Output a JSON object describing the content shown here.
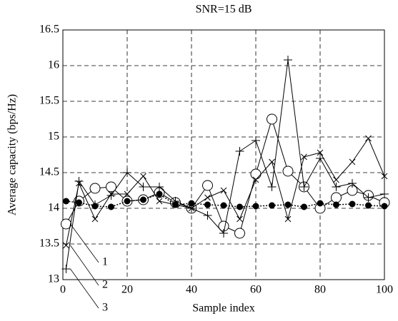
{
  "chart_data": {
    "type": "line",
    "title": "SNR=15 dB",
    "x_label": "Sample index",
    "y_label": "Average capacity (bps/Hz)",
    "x": [
      1,
      5,
      10,
      15,
      20,
      25,
      30,
      35,
      40,
      45,
      50,
      55,
      60,
      65,
      70,
      75,
      80,
      85,
      90,
      95,
      100
    ],
    "series": [
      {
        "name": "1",
        "color": "#000000",
        "marker": "circle",
        "values": [
          13.78,
          14.1,
          14.28,
          14.3,
          14.1,
          14.12,
          14.22,
          14.08,
          14.0,
          14.32,
          13.75,
          13.65,
          14.48,
          15.25,
          14.52,
          14.3,
          14.0,
          14.15,
          14.25,
          14.18,
          14.08
        ]
      },
      {
        "name": "2",
        "color": "#000000",
        "marker": "x",
        "values": [
          13.48,
          14.35,
          13.85,
          14.2,
          14.2,
          14.45,
          14.1,
          14.05,
          14.0,
          14.15,
          14.25,
          13.85,
          14.4,
          14.65,
          13.85,
          14.72,
          14.78,
          14.4,
          14.65,
          14.98,
          14.45
        ]
      },
      {
        "name": "3",
        "color": "#000000",
        "marker": "plus",
        "values": [
          13.15,
          14.38,
          14.05,
          14.18,
          14.5,
          14.3,
          14.3,
          14.1,
          14.0,
          13.9,
          13.65,
          14.8,
          14.95,
          14.3,
          16.08,
          14.3,
          14.7,
          14.3,
          14.35,
          14.15,
          14.2
        ]
      },
      {
        "color": "#000000",
        "marker": "dot",
        "values": [
          14.1,
          14.08,
          14.03,
          14.02,
          14.1,
          14.12,
          14.2,
          14.05,
          14.07,
          14.05,
          14.04,
          14.02,
          14.03,
          14.04,
          14.05,
          14.02,
          14.07,
          14.05,
          14.06,
          14.04,
          14.03
        ]
      }
    ],
    "xlim": [
      0,
      100
    ],
    "xticks": [
      0,
      20,
      40,
      60,
      80,
      100
    ],
    "ylim": [
      13,
      16.5
    ],
    "yticks": [
      13,
      13.5,
      14,
      14.5,
      15,
      15.5,
      16,
      16.5
    ],
    "grid": true
  }
}
